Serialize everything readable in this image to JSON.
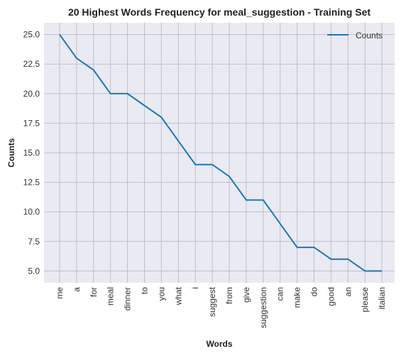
{
  "chart_data": {
    "type": "line",
    "title": "20 Highest Words Frequency for meal_suggestion - Training Set",
    "xlabel": "Words",
    "ylabel": "Counts",
    "categories": [
      "me",
      "a",
      "for",
      "meal",
      "dinner",
      "to",
      "you",
      "what",
      "i",
      "suggest",
      "from",
      "give",
      "suggestion",
      "can",
      "make",
      "do",
      "good",
      "an",
      "please",
      "italian"
    ],
    "series": [
      {
        "name": "Counts",
        "values": [
          25,
          23,
          22,
          20,
          20,
          19,
          18,
          16,
          14,
          14,
          13,
          11,
          11,
          9,
          7,
          7,
          6,
          6,
          5,
          5
        ],
        "color": "#1f77b4"
      }
    ],
    "ylim": [
      4.0,
      26.0
    ],
    "yticks": [
      "5.0",
      "7.5",
      "10.0",
      "12.5",
      "15.0",
      "17.5",
      "20.0",
      "22.5",
      "25.0"
    ],
    "grid": true,
    "legend_position": "top-right",
    "background": "#eaeaf2",
    "grid_color": "#c0c0c8"
  }
}
